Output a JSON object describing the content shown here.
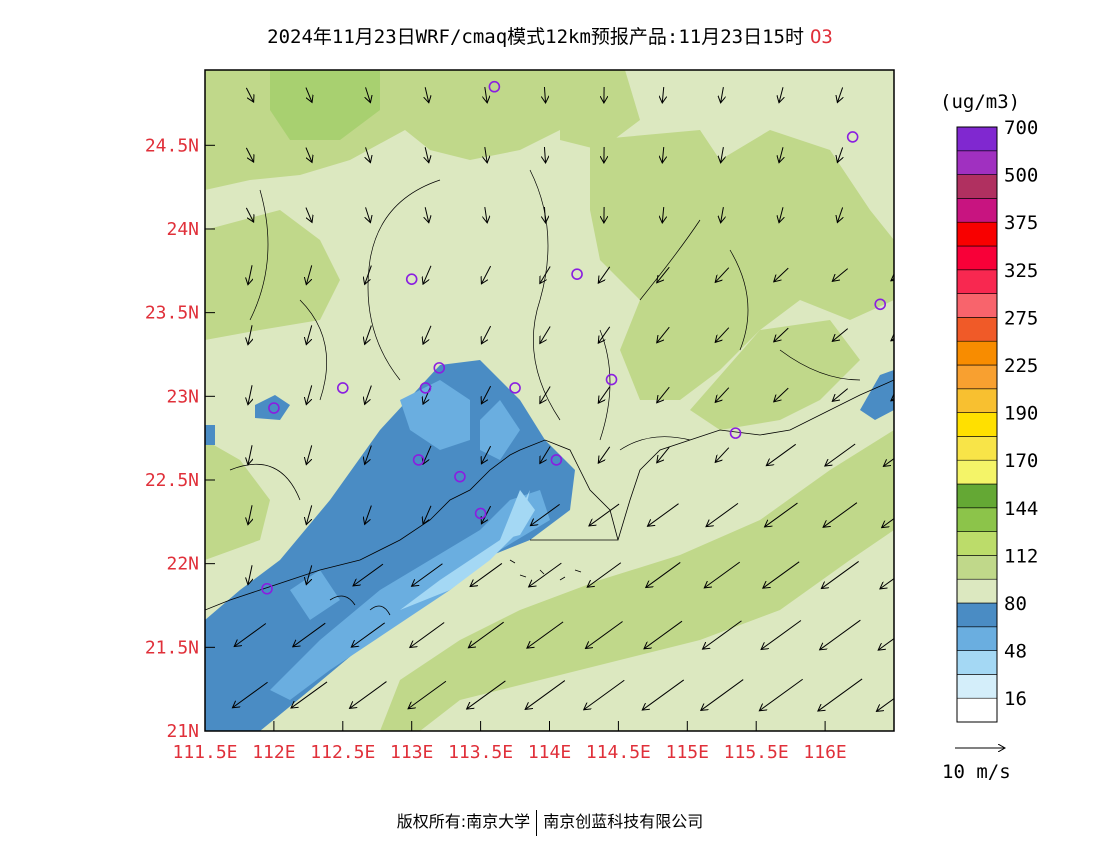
{
  "title": {
    "main": "2024年11月23日WRF/cmaq模式12km预报产品:11月23日15时",
    "pollutant": "O3"
  },
  "map": {
    "lon_range": [
      111.5,
      116.5
    ],
    "lat_range": [
      21.0,
      24.95
    ],
    "x_ticks": [
      "111.5E",
      "112E",
      "112.5E",
      "113E",
      "113.5E",
      "114E",
      "114.5E",
      "115E",
      "115.5E",
      "116E"
    ],
    "y_ticks": [
      "21N",
      "21.5N",
      "22N",
      "22.5N",
      "23N",
      "23.5N",
      "24N",
      "24.5N"
    ],
    "stations_lonlat": [
      [
        113.6,
        24.85
      ],
      [
        116.2,
        24.55
      ],
      [
        113.0,
        23.7
      ],
      [
        114.2,
        23.73
      ],
      [
        116.4,
        23.55
      ],
      [
        112.5,
        23.05
      ],
      [
        113.2,
        23.17
      ],
      [
        113.1,
        23.05
      ],
      [
        113.75,
        23.05
      ],
      [
        114.45,
        23.1
      ],
      [
        112.0,
        22.93
      ],
      [
        113.05,
        22.62
      ],
      [
        113.35,
        22.52
      ],
      [
        114.05,
        22.62
      ],
      [
        113.5,
        22.3
      ],
      [
        111.95,
        21.85
      ],
      [
        115.35,
        22.78
      ]
    ],
    "colors": {
      "light_green": "#dce8c0",
      "mid_green": "#c0d88a",
      "bright_green": "#a8d070",
      "dark_blue": "#4a8cc4",
      "mid_blue": "#6aaee0",
      "light_blue": "#a4d8f4",
      "station": "#8a1ee0"
    }
  },
  "colorbar": {
    "unit": "(ug/m3)",
    "colors": [
      "#ffffff",
      "#d4eefa",
      "#a4d8f4",
      "#6aaee0",
      "#4a8cc4",
      "#dce8c0",
      "#c0d88a",
      "#bcdc6a",
      "#8cc44a",
      "#64a834",
      "#f4f468",
      "#f8e448",
      "#ffe000",
      "#f8c030",
      "#f8a030",
      "#f88c00",
      "#f05a28",
      "#f8646c",
      "#f82850",
      "#f80038",
      "#f80000",
      "#c81480",
      "#b03060",
      "#a030c0",
      "#8028d0"
    ],
    "labels": [
      "16",
      "48",
      "80",
      "112",
      "144",
      "170",
      "190",
      "225",
      "275",
      "325",
      "375",
      "500",
      "700"
    ]
  },
  "wind_legend": "10 m/s",
  "footer": {
    "left": "版权所有:南京大学",
    "right": "南京创蓝科技有限公司"
  }
}
